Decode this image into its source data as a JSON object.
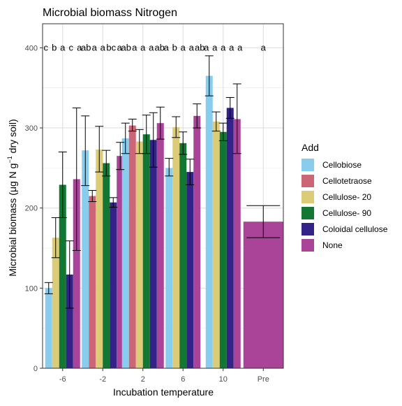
{
  "chart_data": {
    "type": "bar",
    "title": "Microbial biomass Nitrogen",
    "xlabel": "Incubation temperature",
    "ylabel_main": "Microbial biomass (μg N g",
    "ylabel_sup": "−1",
    "ylabel_tail": " dry soil)",
    "ylim": [
      0,
      430
    ],
    "yticks": [
      0,
      100,
      200,
      300,
      400
    ],
    "grid": true,
    "legend_position": "right",
    "legend_title": "Add",
    "categories": [
      "-6",
      "-2",
      "2",
      "6",
      "10",
      "Pre"
    ],
    "series": [
      {
        "name": "Cellobiose",
        "color": "#88CCEE",
        "values": [
          100,
          272,
          287,
          250,
          365,
          null
        ],
        "err": [
          [
            93,
            107
          ],
          [
            228,
            315
          ],
          [
            268,
            306
          ],
          [
            240,
            262
          ],
          [
            340,
            390
          ],
          null
        ]
      },
      {
        "name": "Cellotetraose",
        "color": "#CC6677",
        "values": [
          null,
          215,
          303,
          null,
          null,
          null
        ],
        "err": [
          null,
          [
            208,
            222
          ],
          [
            296,
            311
          ],
          null,
          null,
          null
        ]
      },
      {
        "name": "Cellulose- 20",
        "color": "#DDCC77",
        "values": [
          163,
          273,
          283,
          301,
          308,
          null
        ],
        "err": [
          [
            138,
            188
          ],
          [
            245,
            302
          ],
          [
            268,
            298
          ],
          [
            288,
            314
          ],
          [
            296,
            320
          ],
          null
        ]
      },
      {
        "name": "Cellulose- 90",
        "color": "#117733",
        "values": [
          229,
          256,
          292,
          281,
          295,
          null
        ],
        "err": [
          [
            188,
            270
          ],
          [
            240,
            272
          ],
          [
            268,
            316
          ],
          [
            267,
            295
          ],
          [
            284,
            306
          ],
          null
        ]
      },
      {
        "name": "Coloidal cellulose",
        "color": "#332288",
        "values": [
          117,
          207,
          285,
          245,
          325,
          null
        ],
        "err": [
          [
            75,
            159
          ],
          [
            201,
            213
          ],
          [
            251,
            319
          ],
          [
            229,
            261
          ],
          [
            312,
            338
          ],
          null
        ]
      },
      {
        "name": "None",
        "color": "#AA4499",
        "values": [
          236,
          265,
          306,
          315,
          311,
          183
        ],
        "err": [
          [
            147,
            325
          ],
          [
            248,
            282
          ],
          [
            286,
            326
          ],
          [
            300,
            330
          ],
          [
            268,
            355
          ],
          [
            163,
            203
          ]
        ]
      }
    ],
    "letters": [
      [
        "c",
        "b",
        "a",
        "c",
        "a"
      ],
      [
        "ab",
        "a",
        "a",
        "bc",
        "a"
      ],
      [
        "ab",
        "a",
        "a",
        "a",
        "ab"
      ],
      [
        "a",
        "b",
        "a",
        "a",
        "ab"
      ],
      [
        "a",
        "a",
        "a",
        "a",
        "a"
      ],
      [
        "a"
      ]
    ]
  }
}
